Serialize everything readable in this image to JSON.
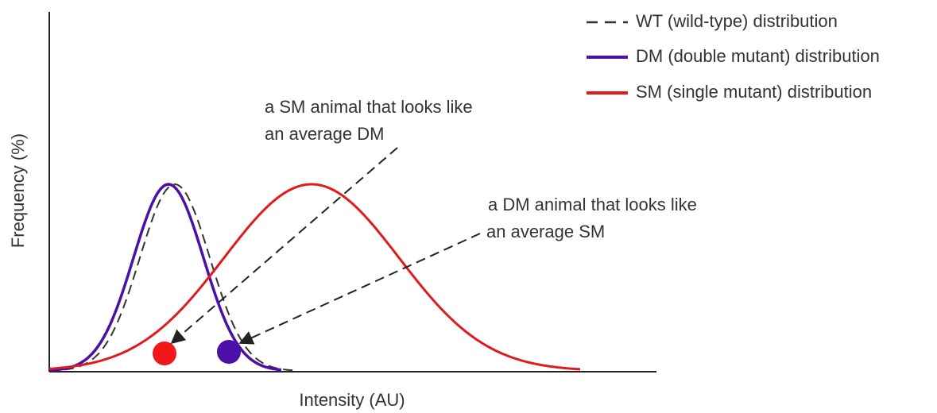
{
  "axes": {
    "y_label": "Frequency (%)",
    "x_label": "Intensity (AU)"
  },
  "legend": [
    {
      "label": "WT (wild-type) distribution"
    },
    {
      "label": "DM (double mutant) distribution"
    },
    {
      "label": "SM (single mutant) distribution"
    }
  ],
  "annotations": [
    {
      "lines": [
        "a SM animal that looks like",
        "an average DM"
      ]
    },
    {
      "lines": [
        "a DM animal that looks like",
        "an average SM"
      ]
    }
  ]
}
